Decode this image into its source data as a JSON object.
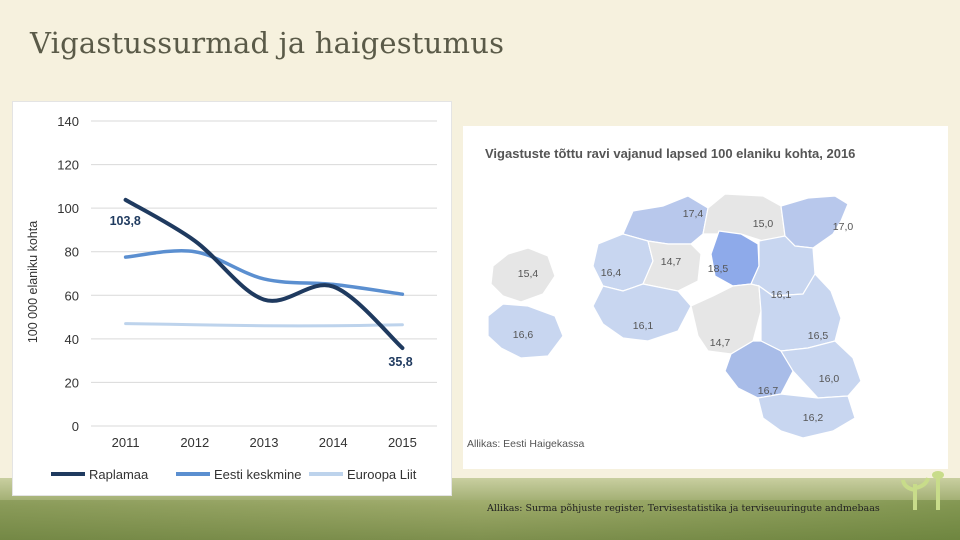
{
  "slide": {
    "title": "Vigastussurmad ja haigestumus",
    "source": "Allikas: Surma põhjuste register, Tervisestatistika ja terviseuuringute andmebaas"
  },
  "chart_data": [
    {
      "type": "line",
      "ylabel": "100 000 elaniku kohta",
      "ylim": [
        0,
        140
      ],
      "yticks": [
        "0",
        "20",
        "40",
        "60",
        "80",
        "100",
        "120",
        "140"
      ],
      "x": [
        "2011",
        "2012",
        "2013",
        "2014",
        "2015"
      ],
      "grid": true,
      "legend_position": "bottom",
      "series": [
        {
          "name": "Raplamaa",
          "values": [
            103.8,
            85,
            58,
            64,
            35.8
          ],
          "color": "#1f3a5f"
        },
        {
          "name": "Eesti keskmine",
          "values": [
            77.5,
            80,
            67.5,
            65,
            60.5
          ],
          "color": "#5b8fd0"
        },
        {
          "name": "Euroopa Liit",
          "values": [
            47,
            46.5,
            46,
            46,
            46.5
          ],
          "color": "#bdd3ec"
        }
      ],
      "annotations": [
        {
          "text": "103,8",
          "x": "2011",
          "y": 103.8
        },
        {
          "text": "35,8",
          "x": "2015",
          "y": 35.8
        }
      ]
    },
    {
      "type": "map",
      "title": "Vigastuste tõttu ravi vajanud lapsed 100 elaniku kohta, 2016",
      "source": "Allikas: Eesti Haigekassa",
      "regions": [
        {
          "value": "17,4",
          "fill": "#b8c8ec"
        },
        {
          "value": "15,0",
          "fill": "#e6e6e6"
        },
        {
          "value": "17,0",
          "fill": "#b8c8ec"
        },
        {
          "value": "15,4",
          "fill": "#e6e6e6"
        },
        {
          "value": "16,4",
          "fill": "#c8d6f0"
        },
        {
          "value": "14,7",
          "fill": "#e6e6e6"
        },
        {
          "value": "18,5",
          "fill": "#8eaaea"
        },
        {
          "value": "16,1",
          "fill": "#c8d6f0"
        },
        {
          "value": "16,6",
          "fill": "#c8d6f0"
        },
        {
          "value": "16,1",
          "fill": "#c8d6f0"
        },
        {
          "value": "14,7",
          "fill": "#e6e6e6"
        },
        {
          "value": "16,5",
          "fill": "#c8d6f0"
        },
        {
          "value": "16,7",
          "fill": "#a8bce8"
        },
        {
          "value": "16,0",
          "fill": "#c8d6f0"
        },
        {
          "value": "16,2",
          "fill": "#c8d6f0"
        }
      ]
    }
  ]
}
